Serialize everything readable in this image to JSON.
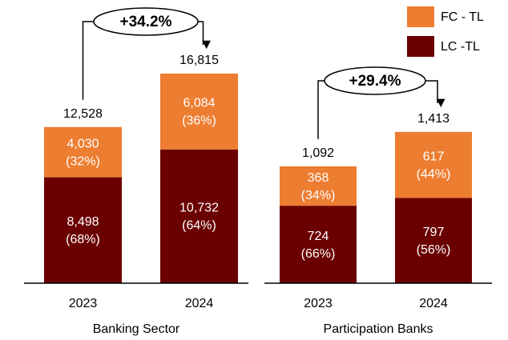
{
  "legend": [
    {
      "name": "FC - TL",
      "color": "#ed7d31"
    },
    {
      "name": "LC -TL",
      "color": "#6b0000"
    }
  ],
  "chart_data": [
    {
      "type": "bar",
      "stacked": true,
      "xlabel": "Banking Sector",
      "categories": [
        "2023",
        "2024"
      ],
      "growth": "+34.2%",
      "totals": [
        12528,
        16815
      ],
      "total_labels": [
        "12,528",
        "16,815"
      ],
      "series": [
        {
          "values": [
            4030,
            6084
          ],
          "value_labels": [
            "4,030",
            "6,084"
          ],
          "shares": [
            32,
            36
          ],
          "share_labels": [
            "(32%)",
            "(36%)"
          ]
        },
        {
          "values": [
            8498,
            10732
          ],
          "value_labels": [
            "8,498",
            "10,732"
          ],
          "shares": [
            68,
            64
          ],
          "share_labels": [
            "(68%)",
            "(64%)"
          ]
        }
      ]
    },
    {
      "type": "bar",
      "stacked": true,
      "xlabel": "Participation Banks",
      "categories": [
        "2023",
        "2024"
      ],
      "growth": "+29.4%",
      "totals": [
        1092,
        1413
      ],
      "total_labels": [
        "1,092",
        "1,413"
      ],
      "series": [
        {
          "values": [
            368,
            617
          ],
          "value_labels": [
            "368",
            "617"
          ],
          "shares": [
            34,
            44
          ],
          "share_labels": [
            "(34%)",
            "(44%)"
          ]
        },
        {
          "values": [
            724,
            797
          ],
          "value_labels": [
            "724",
            "797"
          ],
          "shares": [
            66,
            56
          ],
          "share_labels": [
            "(66%)",
            "(56%)"
          ]
        }
      ]
    }
  ]
}
